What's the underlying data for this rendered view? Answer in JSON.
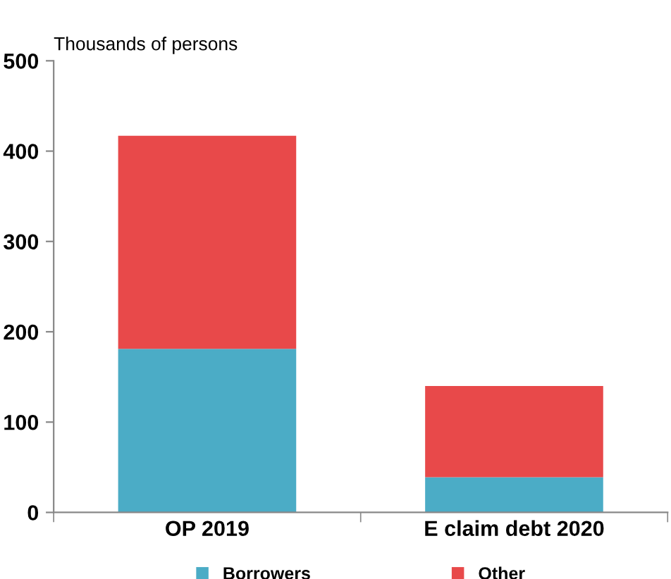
{
  "chart_data": {
    "type": "bar",
    "stacked": true,
    "ylabel": "Thousands of persons",
    "categories": [
      "OP 2019",
      "E claim debt 2020"
    ],
    "series": [
      {
        "name": "Borrowers",
        "color": "#4bacc6",
        "values": [
          181,
          39
        ]
      },
      {
        "name": "Other",
        "color": "#e8494a",
        "values": [
          236,
          101
        ]
      }
    ],
    "ylim": [
      0,
      500
    ],
    "yticks": [
      0,
      100,
      200,
      300,
      400,
      500
    ],
    "grid": false,
    "legend": "bottom"
  }
}
